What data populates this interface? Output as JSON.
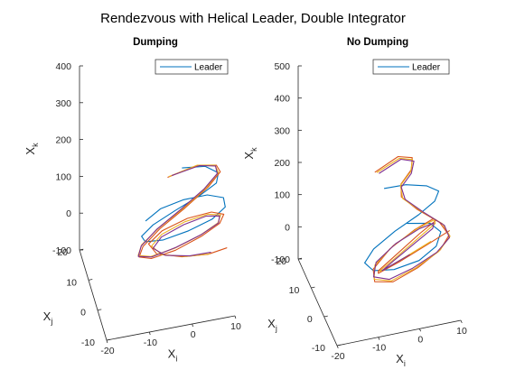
{
  "figure": {
    "title": "Rendezvous with Helical Leader, Double Integrator"
  },
  "chart_data": [
    {
      "type": "line3d",
      "title": "Dumping",
      "xlabel": "X",
      "xlabel_sub": "i",
      "ylabel": "X",
      "ylabel_sub": "j",
      "zlabel": "X",
      "zlabel_sub": "k",
      "xlim": [
        -20,
        10
      ],
      "ylim": [
        -10,
        20
      ],
      "zlim": [
        -100,
        400
      ],
      "xticks": [
        "-20",
        "-10",
        "0",
        "10"
      ],
      "yticks": [
        "-10",
        "0",
        "10",
        "20"
      ],
      "zticks": [
        "-100",
        "0",
        "100",
        "200",
        "300",
        "400"
      ],
      "legend": {
        "entries": [
          "Leader"
        ],
        "location": "top-right"
      },
      "series": [
        {
          "name": "Leader",
          "color": "#0072BD",
          "points": [
            [
              -0.85,
              -3.2,
              270
            ],
            [
              4.78,
              -1.6,
              249
            ],
            [
              8.43,
              0.9,
              203
            ],
            [
              8.54,
              3.6,
              153
            ],
            [
              5.08,
              5.6,
              110
            ],
            [
              -0.5,
              6.2,
              77
            ],
            [
              -5.92,
              5.2,
              58
            ],
            [
              -9.05,
              3.1,
              51
            ],
            [
              -8.7,
              0.7,
              55
            ],
            [
              -4.9,
              -1.2,
              67
            ],
            [
              0.85,
              -1.9,
              85
            ],
            [
              6.5,
              -1.6,
              102
            ],
            [
              9.8,
              -0.2,
              116
            ],
            [
              9.8,
              1.8,
              125
            ],
            [
              6.37,
              3.4,
              127
            ],
            [
              1.0,
              4.1,
              120
            ],
            [
              -4.5,
              3.8,
              110
            ],
            [
              -8.2,
              2.5,
              96
            ]
          ]
        },
        {
          "color": "#D95319",
          "points": [
            [
              -5.2,
              -7.8,
              292
            ],
            [
              1.8,
              -6.6,
              298
            ],
            [
              6.8,
              -4.6,
              272
            ],
            [
              8.3,
              -1.8,
              228
            ],
            [
              6.0,
              0.8,
              170
            ],
            [
              1.0,
              2.6,
              110
            ],
            [
              -4.8,
              3.0,
              63
            ],
            [
              -9.0,
              1.8,
              34
            ],
            [
              -10.4,
              -0.6,
              28
            ],
            [
              -8.1,
              -3.2,
              40
            ],
            [
              -2.8,
              -4.8,
              64
            ],
            [
              3.2,
              -5.0,
              90
            ],
            [
              7.8,
              -3.6,
              104
            ],
            [
              9.3,
              -1.0,
              104
            ],
            [
              7.0,
              1.8,
              92
            ],
            [
              1.8,
              3.8,
              70
            ],
            [
              -4.0,
              4.2,
              46
            ],
            [
              -7.4,
              3.2,
              26
            ],
            [
              -6.0,
              1.0,
              14
            ],
            [
              -0.5,
              -1.0,
              10
            ],
            [
              5.4,
              -2.0,
              12
            ],
            [
              9.8,
              -1.8,
              18
            ]
          ]
        },
        {
          "color": "#EDB120",
          "points": [
            [
              -4.8,
              -7.4,
              290
            ],
            [
              2.0,
              -6.2,
              296
            ],
            [
              6.6,
              -4.0,
              268
            ],
            [
              8.0,
              -1.2,
              222
            ],
            [
              5.6,
              1.2,
              165
            ],
            [
              0.6,
              3.0,
              106
            ],
            [
              -5.0,
              3.4,
              62
            ],
            [
              -9.2,
              2.2,
              36
            ],
            [
              -10.6,
              -0.4,
              31
            ],
            [
              -8.2,
              -3.0,
              44
            ],
            [
              -3.0,
              -4.6,
              68
            ],
            [
              3.0,
              -4.8,
              92
            ],
            [
              7.4,
              -3.4,
              104
            ],
            [
              8.6,
              -0.8,
              102
            ],
            [
              6.2,
              1.8,
              88
            ],
            [
              1.2,
              3.6,
              64
            ],
            [
              -4.2,
              3.8,
              40
            ],
            [
              -6.8,
              2.8,
              22
            ],
            [
              -4.8,
              0.6,
              12
            ],
            [
              0.6,
              -1.2,
              10
            ],
            [
              5.8,
              -2.2,
              14
            ]
          ]
        },
        {
          "color": "#7E2F8E",
          "points": [
            [
              -4.0,
              -6.8,
              286
            ],
            [
              2.6,
              -5.8,
              290
            ],
            [
              6.8,
              -3.6,
              262
            ],
            [
              7.8,
              -0.8,
              216
            ],
            [
              5.2,
              1.6,
              160
            ],
            [
              0.0,
              3.2,
              102
            ],
            [
              -5.4,
              3.4,
              60
            ],
            [
              -9.4,
              2.0,
              34
            ],
            [
              -10.6,
              -0.6,
              30
            ],
            [
              -8.0,
              -3.2,
              44
            ],
            [
              -2.6,
              -4.6,
              70
            ],
            [
              3.4,
              -4.6,
              92
            ],
            [
              7.6,
              -3.2,
              102
            ],
            [
              8.4,
              -0.6,
              98
            ],
            [
              5.8,
              1.8,
              84
            ],
            [
              0.8,
              3.2,
              60
            ],
            [
              -4.4,
              3.2,
              38
            ],
            [
              -6.6,
              2.0,
              22
            ],
            [
              -4.2,
              0.0,
              14
            ],
            [
              1.2,
              -1.4,
              12
            ],
            [
              6.0,
              -2.0,
              16
            ]
          ]
        }
      ]
    },
    {
      "type": "line3d",
      "title": "No Dumping",
      "xlabel": "X",
      "xlabel_sub": "i",
      "ylabel": "X",
      "ylabel_sub": "j",
      "zlabel": "X",
      "zlabel_sub": "k",
      "xlim": [
        -20,
        10
      ],
      "ylim": [
        -10,
        20
      ],
      "zlim": [
        -100,
        500
      ],
      "xticks": [
        "-20",
        "-10",
        "0",
        "10"
      ],
      "yticks": [
        "-10",
        "0",
        "10",
        "20"
      ],
      "zticks": [
        "-100",
        "0",
        "100",
        "200",
        "300",
        "400",
        "500"
      ],
      "legend": {
        "entries": [
          "Leader"
        ],
        "location": "top-right"
      },
      "series": [
        {
          "name": "Leader",
          "color": "#0072BD",
          "points": [
            [
              -6.0,
              -2.0,
              280
            ],
            [
              -0.5,
              -1.0,
              268
            ],
            [
              5.0,
              0.6,
              236
            ],
            [
              8.6,
              2.6,
              192
            ],
            [
              8.2,
              4.4,
              146
            ],
            [
              4.6,
              5.4,
              104
            ],
            [
              -1.2,
              5.2,
              70
            ],
            [
              -6.8,
              3.8,
              42
            ],
            [
              -9.6,
              1.8,
              24
            ],
            [
              -8.2,
              -0.4,
              16
            ],
            [
              -3.6,
              -1.8,
              20
            ],
            [
              2.4,
              -2.0,
              34
            ],
            [
              7.0,
              -0.6,
              54
            ],
            [
              8.8,
              1.6,
              74
            ],
            [
              6.8,
              3.6,
              88
            ],
            [
              1.6,
              4.6,
              92
            ]
          ]
        },
        {
          "color": "#D95319",
          "points": [
            [
              -9.0,
              -4.4,
              360
            ],
            [
              -3.0,
              -3.0,
              380
            ],
            [
              0.8,
              -1.8,
              356
            ],
            [
              1.2,
              0.2,
              300
            ],
            [
              -0.8,
              1.8,
              246
            ],
            [
              -0.4,
              2.8,
              196
            ],
            [
              3.4,
              2.4,
              150
            ],
            [
              8.4,
              1.2,
              108
            ],
            [
              10.2,
              -0.2,
              76
            ],
            [
              7.6,
              -1.8,
              52
            ],
            [
              1.6,
              -3.4,
              26
            ],
            [
              -4.6,
              -4.2,
              6
            ],
            [
              -8.8,
              -3.4,
              10
            ],
            [
              -8.6,
              -1.6,
              32
            ],
            [
              -3.8,
              0.6,
              64
            ],
            [
              2.8,
              2.4,
              90
            ],
            [
              7.6,
              3.6,
              100
            ],
            [
              8.4,
              3.8,
              92
            ],
            [
              4.0,
              2.8,
              70
            ],
            [
              -2.4,
              0.8,
              38
            ],
            [
              -7.2,
              -1.0,
              18
            ],
            [
              -7.6,
              -2.4,
              24
            ],
            [
              -2.6,
              -2.4,
              46
            ],
            [
              4.6,
              -1.2,
              70
            ],
            [
              10.6,
              0.8,
              80
            ]
          ]
        },
        {
          "color": "#EDB120",
          "points": [
            [
              -8.4,
              -4.0,
              354
            ],
            [
              -2.6,
              -2.8,
              372
            ],
            [
              1.0,
              -1.4,
              346
            ],
            [
              1.2,
              0.6,
              290
            ],
            [
              -0.8,
              2.2,
              238
            ],
            [
              0.0,
              3.0,
              188
            ],
            [
              4.2,
              2.4,
              144
            ],
            [
              9.0,
              1.0,
              104
            ],
            [
              10.4,
              -0.4,
              74
            ],
            [
              7.2,
              -2.0,
              50
            ],
            [
              1.0,
              -3.4,
              26
            ],
            [
              -5.0,
              -4.0,
              8
            ],
            [
              -8.8,
              -3.0,
              14
            ],
            [
              -8.0,
              -1.0,
              38
            ],
            [
              -2.8,
              1.2,
              66
            ],
            [
              3.6,
              2.8,
              88
            ],
            [
              7.8,
              3.6,
              96
            ],
            [
              8.0,
              3.4,
              86
            ],
            [
              3.4,
              2.2,
              62
            ],
            [
              -2.8,
              0.2,
              34
            ],
            [
              -7.0,
              -1.4,
              20
            ],
            [
              -6.6,
              -2.4,
              30
            ],
            [
              -1.2,
              -2.0,
              52
            ],
            [
              5.6,
              -0.8,
              74
            ]
          ]
        },
        {
          "color": "#7E2F8E",
          "points": [
            [
              -7.8,
              -3.8,
              348
            ],
            [
              -2.2,
              -2.6,
              366
            ],
            [
              1.4,
              -1.2,
              338
            ],
            [
              1.4,
              0.8,
              282
            ],
            [
              -0.6,
              2.2,
              232
            ],
            [
              0.6,
              3.0,
              184
            ],
            [
              4.8,
              2.2,
              140
            ],
            [
              9.4,
              0.8,
              100
            ],
            [
              10.2,
              -0.6,
              72
            ],
            [
              6.6,
              -2.2,
              50
            ],
            [
              0.4,
              -3.4,
              28
            ],
            [
              -5.4,
              -3.8,
              12
            ],
            [
              -8.8,
              -2.6,
              18
            ],
            [
              -7.6,
              -0.6,
              42
            ],
            [
              -2.2,
              1.4,
              68
            ],
            [
              4.0,
              2.8,
              86
            ],
            [
              7.6,
              3.2,
              90
            ],
            [
              7.2,
              2.8,
              78
            ],
            [
              2.6,
              1.6,
              56
            ],
            [
              -3.2,
              -0.2,
              32
            ],
            [
              -6.4,
              -1.6,
              22
            ],
            [
              -5.4,
              -2.2,
              34
            ],
            [
              0.2,
              -1.6,
              54
            ]
          ]
        }
      ]
    }
  ]
}
